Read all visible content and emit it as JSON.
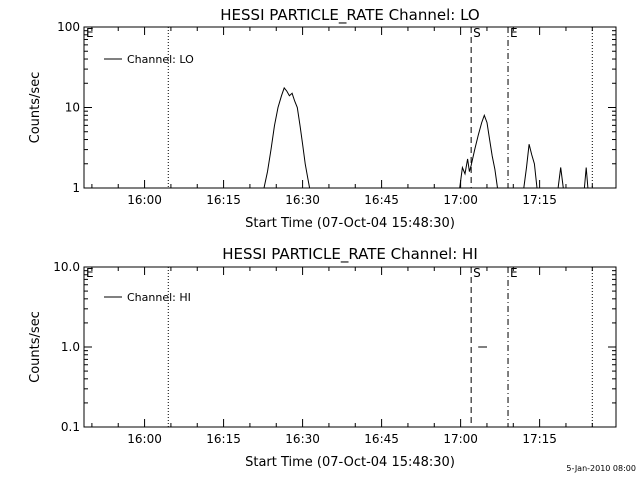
{
  "footer": {
    "date_stamp": "5-Jan-2010 08:00"
  },
  "chart_data": [
    {
      "type": "line",
      "title": "HESSI PARTICLE_RATE Channel: LO",
      "xlabel": "Start Time (07-Oct-04 15:48:30)",
      "ylabel": "Counts/sec",
      "yscale": "log",
      "xlim": [
        "15:48:30",
        "17:29:30"
      ],
      "ylim": [
        1,
        100
      ],
      "x_ticks": [
        "16:00",
        "16:15",
        "16:30",
        "16:45",
        "17:00",
        "17:15"
      ],
      "y_ticks": [
        "1",
        "10",
        "100"
      ],
      "legend": {
        "position": "top-left",
        "entries": [
          "Channel: LO"
        ]
      },
      "grid": false,
      "markers": [
        {
          "label": "E",
          "time": "15:48:30",
          "style": "none"
        },
        {
          "label": "",
          "time": "16:04:30",
          "style": "dotted"
        },
        {
          "label": "S",
          "time": "17:02:00",
          "style": "dashed"
        },
        {
          "label": "E",
          "time": "17:09:00",
          "style": "dash-dot"
        },
        {
          "label": "",
          "time": "17:25:00",
          "style": "dotted"
        }
      ],
      "series": [
        {
          "name": "Channel: LO",
          "segments": [
            [
              [
                "16:22:40",
                1
              ],
              [
                "16:23:20",
                1.6
              ],
              [
                "16:24:00",
                3
              ],
              [
                "16:24:40",
                6
              ],
              [
                "16:25:20",
                10
              ],
              [
                "16:26:00",
                14
              ],
              [
                "16:26:30",
                17.5
              ],
              [
                "16:27:00",
                16
              ],
              [
                "16:27:30",
                14
              ],
              [
                "16:28:00",
                15
              ],
              [
                "16:28:30",
                12
              ],
              [
                "16:29:00",
                10
              ],
              [
                "16:29:30",
                6
              ],
              [
                "16:30:00",
                3.5
              ],
              [
                "16:30:30",
                2
              ],
              [
                "16:31:00",
                1.3
              ],
              [
                "16:31:20",
                1
              ]
            ],
            [
              [
                "16:59:50",
                1
              ],
              [
                "17:00:20",
                1.8
              ],
              [
                "17:00:50",
                1.5
              ],
              [
                "17:01:20",
                2.3
              ],
              [
                "17:01:40",
                1.6
              ],
              [
                "17:02:00",
                1.9
              ],
              [
                "17:02:40",
                3
              ],
              [
                "17:03:20",
                4.5
              ],
              [
                "17:04:00",
                6.5
              ],
              [
                "17:04:30",
                8
              ],
              [
                "17:05:00",
                6.5
              ],
              [
                "17:05:30",
                4
              ],
              [
                "17:06:00",
                2.5
              ],
              [
                "17:06:30",
                1.7
              ],
              [
                "17:07:00",
                1
              ]
            ],
            [
              [
                "17:12:00",
                1
              ],
              [
                "17:12:30",
                1.8
              ],
              [
                "17:13:00",
                3.5
              ],
              [
                "17:13:30",
                2.6
              ],
              [
                "17:14:00",
                2
              ],
              [
                "17:14:30",
                1
              ]
            ],
            [
              [
                "17:18:30",
                1
              ],
              [
                "17:19:00",
                1.8
              ],
              [
                "17:19:30",
                1
              ]
            ],
            [
              [
                "17:23:30",
                1
              ],
              [
                "17:23:50",
                1.8
              ],
              [
                "17:24:10",
                1
              ]
            ]
          ]
        }
      ]
    },
    {
      "type": "line",
      "title": "HESSI PARTICLE_RATE Channel: HI",
      "xlabel": "Start Time (07-Oct-04 15:48:30)",
      "ylabel": "Counts/sec",
      "yscale": "log",
      "xlim": [
        "15:48:30",
        "17:29:30"
      ],
      "ylim": [
        0.1,
        10
      ],
      "x_ticks": [
        "16:00",
        "16:15",
        "16:30",
        "16:45",
        "17:00",
        "17:15"
      ],
      "y_ticks": [
        "0.1",
        "1.0",
        "10.0"
      ],
      "legend": {
        "position": "top-left",
        "entries": [
          "Channel: HI"
        ]
      },
      "grid": false,
      "markers": [
        {
          "label": "E",
          "time": "15:48:30",
          "style": "none"
        },
        {
          "label": "",
          "time": "16:04:30",
          "style": "dotted"
        },
        {
          "label": "S",
          "time": "17:02:00",
          "style": "dashed"
        },
        {
          "label": "E",
          "time": "17:09:00",
          "style": "dash-dot"
        },
        {
          "label": "",
          "time": "17:25:00",
          "style": "dotted"
        }
      ],
      "series": [
        {
          "name": "Channel: HI",
          "segments": [
            [
              [
                "17:03:20",
                1
              ],
              [
                "17:05:00",
                1
              ]
            ]
          ]
        }
      ]
    }
  ]
}
